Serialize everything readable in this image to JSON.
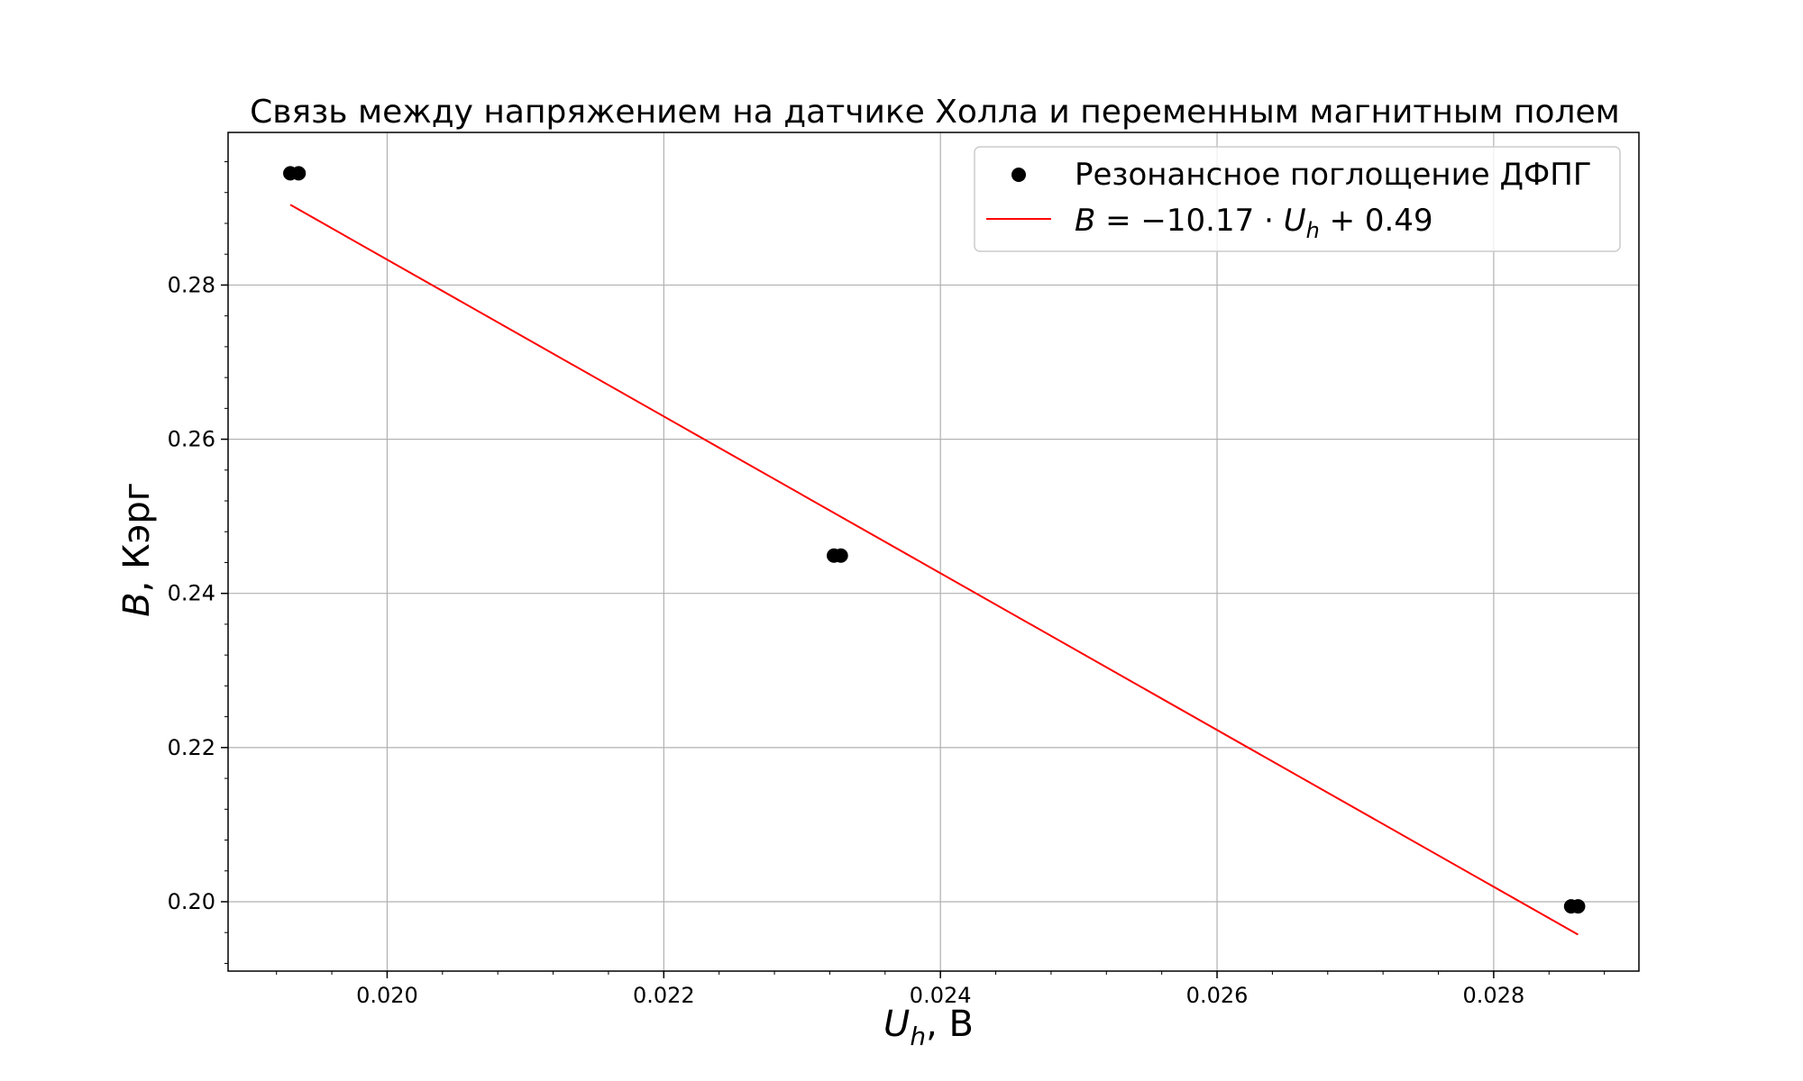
{
  "chart_data": {
    "type": "scatter",
    "title": "Связь между напряжением на датчике Холла и переменным магнитным полем",
    "xlabel_main": "U",
    "xlabel_sub": "h",
    "xlabel_unit": ", В",
    "ylabel_main": "B",
    "ylabel_unit": ", Кэрг",
    "xlim": [
      0.01885,
      0.02905
    ],
    "ylim": [
      0.191,
      0.2998
    ],
    "xticks": [
      0.02,
      0.022,
      0.024,
      0.026,
      0.028
    ],
    "xtick_labels": [
      "0.020",
      "0.022",
      "0.024",
      "0.026",
      "0.028"
    ],
    "yticks": [
      0.2,
      0.22,
      0.24,
      0.26,
      0.28
    ],
    "ytick_labels": [
      "0.20",
      "0.22",
      "0.24",
      "0.26",
      "0.28"
    ],
    "grid": true,
    "legend_position": "top-right",
    "series": [
      {
        "name": "Резонансное поглощение ДФПГ",
        "kind": "scatter",
        "color": "#000000",
        "points": [
          [
            0.0193,
            0.2945
          ],
          [
            0.01936,
            0.2945
          ],
          [
            0.02323,
            0.2449
          ],
          [
            0.02328,
            0.2449
          ],
          [
            0.02856,
            0.1994
          ],
          [
            0.02861,
            0.1994
          ]
        ]
      },
      {
        "name_parts": {
          "lhs": "B",
          "eq": " = −10.17 · ",
          "var": "U",
          "sub": "h",
          "tail": " + 0.49"
        },
        "kind": "line",
        "color": "#ff0000",
        "slope": -10.17,
        "intercept": 0.4867,
        "x_range": [
          0.0193,
          0.02861
        ]
      }
    ]
  }
}
